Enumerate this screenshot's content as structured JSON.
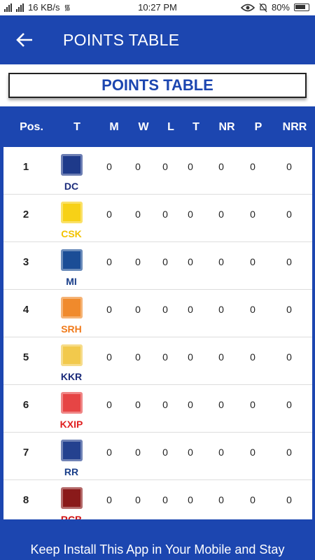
{
  "status_bar": {
    "network_speed": "16 KB/s",
    "time": "10:27 PM",
    "battery": "80%"
  },
  "app_bar": {
    "title": "POINTS TABLE",
    "back_icon": "arrow-left-icon"
  },
  "header_box": {
    "title": "POINTS TABLE"
  },
  "table": {
    "columns": [
      "Pos.",
      "T",
      "M",
      "W",
      "L",
      "T",
      "NR",
      "P",
      "NRR"
    ],
    "rows": [
      {
        "pos": "1",
        "team": "DC",
        "team_color": "#1a2a7a",
        "logo_color": "#1e3a8a",
        "m": "0",
        "w": "0",
        "l": "0",
        "t": "0",
        "nr": "0",
        "p": "0",
        "nrr": "0"
      },
      {
        "pos": "2",
        "team": "CSK",
        "team_color": "#f2c200",
        "logo_color": "#f7d117",
        "m": "0",
        "w": "0",
        "l": "0",
        "t": "0",
        "nr": "0",
        "p": "0",
        "nrr": "0"
      },
      {
        "pos": "3",
        "team": "MI",
        "team_color": "#1a3f8a",
        "logo_color": "#1b4d96",
        "m": "0",
        "w": "0",
        "l": "0",
        "t": "0",
        "nr": "0",
        "p": "0",
        "nrr": "0"
      },
      {
        "pos": "4",
        "team": "SRH",
        "team_color": "#f07a1a",
        "logo_color": "#f08a2c",
        "m": "0",
        "w": "0",
        "l": "0",
        "t": "0",
        "nr": "0",
        "p": "0",
        "nrr": "0"
      },
      {
        "pos": "5",
        "team": "KKR",
        "team_color": "#1a2a7a",
        "logo_color": "#f2c94c",
        "m": "0",
        "w": "0",
        "l": "0",
        "t": "0",
        "nr": "0",
        "p": "0",
        "nrr": "0"
      },
      {
        "pos": "6",
        "team": "KXIP",
        "team_color": "#e02020",
        "logo_color": "#e64545",
        "m": "0",
        "w": "0",
        "l": "0",
        "t": "0",
        "nr": "0",
        "p": "0",
        "nrr": "0"
      },
      {
        "pos": "7",
        "team": "RR",
        "team_color": "#1a3f8a",
        "logo_color": "#24418f",
        "m": "0",
        "w": "0",
        "l": "0",
        "t": "0",
        "nr": "0",
        "p": "0",
        "nrr": "0"
      },
      {
        "pos": "8",
        "team": "RCB",
        "team_color": "#d01010",
        "logo_color": "#8a1a1a",
        "m": "0",
        "w": "0",
        "l": "0",
        "t": "0",
        "nr": "0",
        "p": "0",
        "nrr": "0"
      }
    ]
  },
  "footer": {
    "text": "Keep Install This App in Your Mobile and Stay"
  },
  "colors": {
    "primary": "#1c46b0",
    "title_text": "#1c46b0"
  }
}
